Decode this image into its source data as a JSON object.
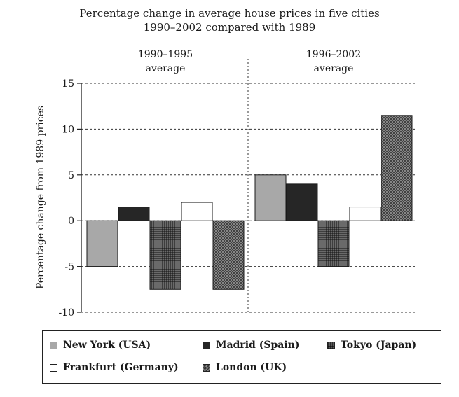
{
  "chart_data": {
    "type": "bar",
    "title": "Percentage change in average house prices in five cities",
    "subtitle": "1990–2002 compared with 1989",
    "ylabel": "Percentage change from 1989 prices",
    "xlabel": "",
    "ylim": [
      -10,
      15
    ],
    "yticks": [
      15,
      10,
      5,
      0,
      -5,
      -10
    ],
    "ytick_labels": [
      "15",
      "10",
      "5",
      "0",
      "-5",
      "-10"
    ],
    "grid": true,
    "legend_position": "bottom",
    "categories": [
      "1990–1995 average",
      "1996–2002 average"
    ],
    "category_lines": [
      [
        "1990–1995",
        "average"
      ],
      [
        "1996–2002",
        "average"
      ]
    ],
    "series": [
      {
        "name": "New York (USA)",
        "values": [
          -5,
          5
        ],
        "color": "#a8a8a8",
        "pattern": "solid"
      },
      {
        "name": "Madrid (Spain)",
        "values": [
          1.5,
          4
        ],
        "color": "#262626",
        "pattern": "solid"
      },
      {
        "name": "Tokyo (Japan)",
        "values": [
          -7.5,
          -5
        ],
        "color": "#5a5a5a",
        "pattern": "grid"
      },
      {
        "name": "Frankfurt (Germany)",
        "values": [
          2,
          1.5
        ],
        "color": "#ffffff",
        "pattern": "solid"
      },
      {
        "name": "London (UK)",
        "values": [
          -7.5,
          11.5
        ],
        "color": "#8a8a8a",
        "pattern": "crosshatch"
      }
    ]
  }
}
